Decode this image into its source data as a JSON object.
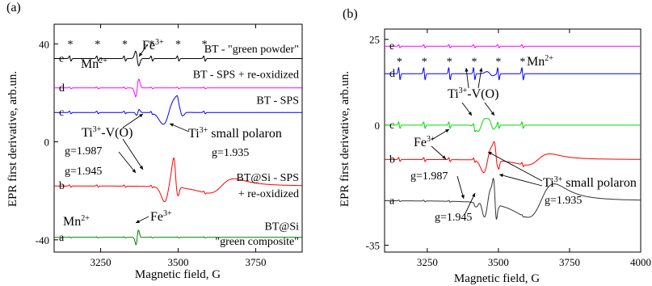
{
  "chart_data": [
    {
      "type": "line",
      "panel_label": "(a)",
      "xlabel": "Magnetic field, G",
      "ylabel": "EPR first derivative, arb.un.",
      "xlim": [
        3100,
        3900
      ],
      "ylim": [
        -45,
        48
      ],
      "xticks": [
        3250,
        3500,
        3750
      ],
      "yticks": [
        -40,
        0,
        40
      ],
      "series": [
        {
          "letter": "e",
          "name": "BT - \"green powder\"",
          "color": "#000000",
          "offset": 34
        },
        {
          "letter": "d",
          "name": "BT - SPS + re-oxidized",
          "color": "#ff00ff",
          "offset": 22
        },
        {
          "letter": "c",
          "name": "BT - SPS",
          "color": "#0000ff",
          "offset": 12
        },
        {
          "letter": "b",
          "name": "BT@Si - SPS",
          "name2": "+ re-oxidized",
          "color": "#ff0000",
          "offset": -18
        },
        {
          "letter": "a",
          "name": "BT@Si",
          "name2": "\"green composite\"",
          "color": "#008000",
          "offset": -39
        }
      ],
      "annotations": {
        "fe_top": "Fe",
        "fe_top_sup": "3+",
        "mn_top": "Mn",
        "mn_top_sup": "2+",
        "ti_vo": "Ti",
        "ti_vo_sup": "3+",
        "ti_vo_rest": "-V(O)",
        "g1": "g=1.987",
        "g2": "g=1.945",
        "ti_pol": "Ti",
        "ti_pol_sup": "3+",
        "ti_pol_rest": " small polaron",
        "g3": "g=1.935",
        "mn_bot": "Mn",
        "mn_bot_sup": "2+",
        "fe_bot": "Fe",
        "fe_bot_sup": "3+",
        "star": "*"
      }
    },
    {
      "type": "line",
      "panel_label": "(b)",
      "xlabel": "Magnetic field, G",
      "ylabel": "EPR first derivative, arb.un.",
      "xlim": [
        3100,
        4000
      ],
      "ylim": [
        -37,
        28
      ],
      "xticks": [
        3250,
        3500,
        3750,
        4000
      ],
      "yticks": [
        -35,
        0,
        25
      ],
      "series": [
        {
          "letter": "e",
          "color": "#ff00ff",
          "offset": 23
        },
        {
          "letter": "d",
          "color": "#0000ff",
          "offset": 15
        },
        {
          "letter": "c",
          "color": "#00dd00",
          "offset": 0
        },
        {
          "letter": "b",
          "color": "#ff0000",
          "offset": -10
        },
        {
          "letter": "a",
          "color": "#333333",
          "offset": -22
        }
      ],
      "annotations": {
        "mn": "Mn",
        "mn_sup": "2+",
        "ti_vo": "Ti",
        "ti_vo_sup": "3+",
        "ti_vo_rest": "-V(O)",
        "fe": "Fe",
        "fe_sup": "3+",
        "g1": "g=1.987",
        "g2": "g=1.945",
        "ti_pol": "Ti",
        "ti_pol_sup": "3+",
        "ti_pol_rest": " small polaron",
        "g3": "g=1.935",
        "star": "*"
      }
    }
  ]
}
